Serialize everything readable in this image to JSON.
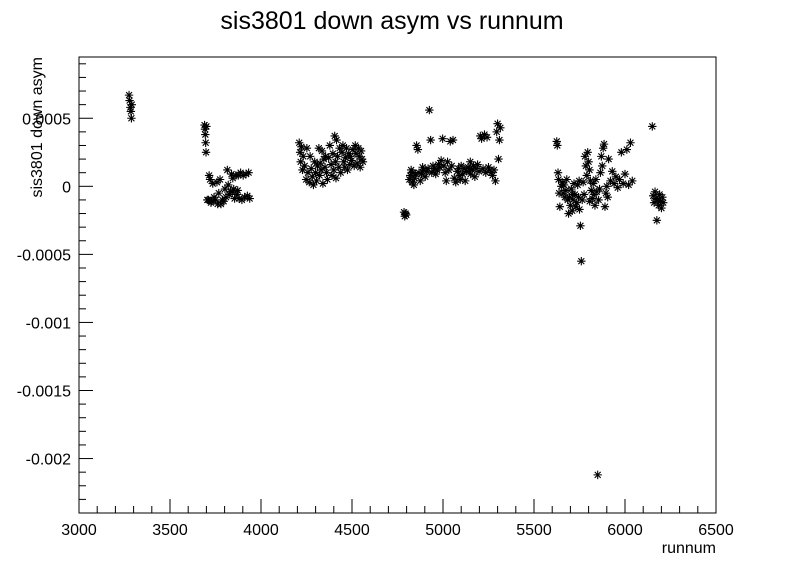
{
  "chart_data": {
    "type": "scatter",
    "title": "sis3801 down asym vs runnum",
    "xlabel": "runnum",
    "ylabel": "sis3801 down asym",
    "xlim": [
      3000,
      6500
    ],
    "ylim": [
      -0.0024,
      0.00095
    ],
    "x_ticks": [
      3000,
      3500,
      4000,
      4500,
      5000,
      5500,
      6000,
      6500
    ],
    "x_tick_labels": [
      "3000",
      "3500",
      "4000",
      "4500",
      "5000",
      "5500",
      "6000",
      "6500"
    ],
    "y_ticks": [
      -0.002,
      -0.0015,
      -0.001,
      -0.0005,
      0,
      0.0005
    ],
    "y_tick_labels": [
      "-0.002",
      "-0.0015",
      "-0.001",
      "-0.0005",
      "0",
      "0.0005"
    ],
    "marker": "asterisk",
    "grid": false,
    "legend": "none",
    "points": [
      [
        3275,
        0.00067
      ],
      [
        3278,
        0.00063
      ],
      [
        3282,
        0.00058
      ],
      [
        3285,
        0.00055
      ],
      [
        3288,
        0.0005
      ],
      [
        3290,
        0.0006
      ],
      [
        3690,
        0.00045
      ],
      [
        3692,
        0.00042
      ],
      [
        3694,
        0.00038
      ],
      [
        3696,
        0.00032
      ],
      [
        3698,
        0.00025
      ],
      [
        3700,
        0.00044
      ],
      [
        3705,
        -0.0001
      ],
      [
        3712,
        -0.0001
      ],
      [
        3715,
        8e-05
      ],
      [
        3720,
        5e-05
      ],
      [
        3725,
        -0.00012
      ],
      [
        3728,
        -0.00011
      ],
      [
        3735,
        2e-05
      ],
      [
        3742,
        -8e-05
      ],
      [
        3750,
        -0.0001
      ],
      [
        3758,
        3e-05
      ],
      [
        3762,
        -0.00013
      ],
      [
        3768,
        -5e-05
      ],
      [
        3775,
        5e-05
      ],
      [
        3780,
        -0.00013
      ],
      [
        3788,
        -0.0001
      ],
      [
        3795,
        -0.00011
      ],
      [
        3802,
        -2e-05
      ],
      [
        3808,
        -8e-05
      ],
      [
        3815,
        0.00012
      ],
      [
        3820,
        1e-05
      ],
      [
        3825,
        -6e-05
      ],
      [
        3832,
        -4e-05
      ],
      [
        3838,
        9e-05
      ],
      [
        3845,
        6e-05
      ],
      [
        3850,
        -2e-05
      ],
      [
        3855,
        -9e-05
      ],
      [
        3862,
        8e-05
      ],
      [
        3868,
        -6e-05
      ],
      [
        3875,
        8e-05
      ],
      [
        3880,
        -9e-05
      ],
      [
        3888,
        0.0001
      ],
      [
        3895,
        -0.0001
      ],
      [
        3902,
        8e-05
      ],
      [
        3910,
        -8e-05
      ],
      [
        3918,
        9e-05
      ],
      [
        3925,
        -7e-05
      ],
      [
        3932,
        0.0001
      ],
      [
        3938,
        -9e-05
      ],
      [
        3842,
        -4e-05
      ],
      [
        3872,
        -3e-05
      ],
      [
        4210,
        0.00032
      ],
      [
        4215,
        0.00025
      ],
      [
        4218,
        0.00018
      ],
      [
        4222,
        0.00029
      ],
      [
        4228,
        0.00012
      ],
      [
        4232,
        0.00022
      ],
      [
        4240,
        0.00015
      ],
      [
        4248,
        5e-05
      ],
      [
        4252,
        0.00028
      ],
      [
        4258,
        0.0001
      ],
      [
        4265,
        3e-05
      ],
      [
        4270,
        0.00022
      ],
      [
        4276,
        0.00013
      ],
      [
        4282,
        7e-05
      ],
      [
        4288,
        1e-05
      ],
      [
        4295,
        0.00018
      ],
      [
        4300,
        0.0001
      ],
      [
        4305,
        4e-05
      ],
      [
        4310,
        0.00015
      ],
      [
        4318,
        0.00028
      ],
      [
        4322,
        8e-05
      ],
      [
        4330,
        0.00012
      ],
      [
        4335,
        0.00026
      ],
      [
        4340,
        2e-05
      ],
      [
        4345,
        0.0002
      ],
      [
        4352,
        0.00014
      ],
      [
        4360,
        0.0001
      ],
      [
        4365,
        5e-05
      ],
      [
        4372,
        0.00021
      ],
      [
        4378,
        0.0003
      ],
      [
        4385,
        0.00016
      ],
      [
        4390,
        8e-05
      ],
      [
        4395,
        0.00024
      ],
      [
        4400,
        0.00012
      ],
      [
        4405,
        0.00037
      ],
      [
        4410,
        0.00018
      ],
      [
        4415,
        0.00034
      ],
      [
        4420,
        0.00022
      ],
      [
        4428,
        0.00014
      ],
      [
        4432,
        0.00028
      ],
      [
        4438,
        0.0001
      ],
      [
        4445,
        0.00025
      ],
      [
        4450,
        0.0003
      ],
      [
        4455,
        0.00018
      ],
      [
        4460,
        0.00014
      ],
      [
        4465,
        0.00021
      ],
      [
        4470,
        0.00028
      ],
      [
        4475,
        0.00012
      ],
      [
        4482,
        0.00024
      ],
      [
        4488,
        0.00016
      ],
      [
        4492,
        0.00022
      ],
      [
        4498,
        0.00019
      ],
      [
        4505,
        0.00027
      ],
      [
        4512,
        0.00015
      ],
      [
        4518,
        0.0003
      ],
      [
        4522,
        0.00024
      ],
      [
        4528,
        0.00017
      ],
      [
        4535,
        0.00028
      ],
      [
        4540,
        0.00022
      ],
      [
        4545,
        0.00014
      ],
      [
        4550,
        0.00026
      ],
      [
        4555,
        0.0002
      ],
      [
        4560,
        0.00018
      ],
      [
        4325,
        0.00017
      ],
      [
        4355,
        0.00022
      ],
      [
        4412,
        6e-05
      ],
      [
        4786,
        -0.00019
      ],
      [
        4790,
        -0.00022
      ],
      [
        4794,
        -0.0002
      ],
      [
        4798,
        -0.00021
      ],
      [
        4815,
        5e-05
      ],
      [
        4820,
        8e-05
      ],
      [
        4825,
        0.00012
      ],
      [
        4830,
        3e-05
      ],
      [
        4835,
        0.0001
      ],
      [
        4840,
        1e-05
      ],
      [
        4845,
        6e-05
      ],
      [
        4850,
        9e-05
      ],
      [
        4855,
        0.0003
      ],
      [
        4862,
        0.00027
      ],
      [
        4868,
        0.0001
      ],
      [
        4875,
        4e-05
      ],
      [
        4882,
        9e-05
      ],
      [
        4888,
        0.00014
      ],
      [
        4895,
        0.00012
      ],
      [
        4902,
        7e-05
      ],
      [
        4910,
        0.00011
      ],
      [
        4918,
        0.00013
      ],
      [
        4925,
        0.00056
      ],
      [
        4932,
        0.00034
      ],
      [
        4938,
        0.0001
      ],
      [
        4945,
        0.00015
      ],
      [
        4952,
        0.00013
      ],
      [
        4960,
        9e-05
      ],
      [
        4968,
        0.00012
      ],
      [
        4975,
        0.00016
      ],
      [
        4982,
        0.00014
      ],
      [
        4990,
        0.00019
      ],
      [
        4998,
        0.00035
      ],
      [
        5005,
        0.00015
      ],
      [
        5012,
        0.0001
      ],
      [
        5018,
        4e-05
      ],
      [
        5025,
        0.00018
      ],
      [
        5032,
        0.00012
      ],
      [
        5040,
        0.00033
      ],
      [
        5048,
        0.00015
      ],
      [
        5055,
        0.00034
      ],
      [
        5062,
        6e-05
      ],
      [
        5070,
        3e-05
      ],
      [
        5078,
        0.00011
      ],
      [
        5085,
        0.00013
      ],
      [
        5092,
        8e-05
      ],
      [
        5100,
        0.00015
      ],
      [
        5108,
        9e-05
      ],
      [
        5115,
        0.00013
      ],
      [
        5122,
        4e-05
      ],
      [
        5130,
        0.00011
      ],
      [
        5138,
        0.00014
      ],
      [
        5145,
        0.00013
      ],
      [
        5152,
        9e-05
      ],
      [
        5160,
        0.00012
      ],
      [
        5168,
        0.00015
      ],
      [
        5175,
        7e-05
      ],
      [
        5182,
        0.00013
      ],
      [
        5190,
        0.00016
      ],
      [
        5198,
        0.00011
      ],
      [
        5205,
        0.00037
      ],
      [
        5212,
        0.00035
      ],
      [
        5220,
        0.00013
      ],
      [
        5228,
        0.00038
      ],
      [
        5235,
        0.0001
      ],
      [
        5242,
        0.00036
      ],
      [
        5250,
        0.00014
      ],
      [
        5258,
        0.00012
      ],
      [
        5265,
        0.0001
      ],
      [
        5272,
        8e-05
      ],
      [
        5280,
        0.00012
      ],
      [
        5288,
        4e-05
      ],
      [
        5295,
        0.0004
      ],
      [
        5300,
        0.00046
      ],
      [
        5305,
        0.0002
      ],
      [
        5310,
        0.00034
      ],
      [
        5315,
        0.00043
      ],
      [
        5095,
        5e-05
      ],
      [
        5150,
        0.00018
      ],
      [
        5625,
        0.00033
      ],
      [
        5628,
        0.0003
      ],
      [
        5632,
        0.0001
      ],
      [
        5635,
        5e-05
      ],
      [
        5638,
        -5e-05
      ],
      [
        5642,
        -0.00015
      ],
      [
        5650,
        0.0
      ],
      [
        5655,
        3e-05
      ],
      [
        5660,
        -5e-05
      ],
      [
        5665,
        1e-05
      ],
      [
        5670,
        -8e-05
      ],
      [
        5675,
        -3e-05
      ],
      [
        5680,
        5e-05
      ],
      [
        5685,
        -0.0001
      ],
      [
        5690,
        -0.0002
      ],
      [
        5695,
        -8e-05
      ],
      [
        5700,
        -0.00014
      ],
      [
        5705,
        -2e-05
      ],
      [
        5710,
        -0.00018
      ],
      [
        5715,
        -0.0001
      ],
      [
        5720,
        2e-05
      ],
      [
        5725,
        -6e-05
      ],
      [
        5730,
        -0.00015
      ],
      [
        5735,
        -0.00012
      ],
      [
        5740,
        1e-05
      ],
      [
        5745,
        -8e-05
      ],
      [
        5750,
        -0.00017
      ],
      [
        5755,
        -0.00029
      ],
      [
        5760,
        -0.00055
      ],
      [
        5765,
        -0.0001
      ],
      [
        5770,
        3e-05
      ],
      [
        5775,
        -6e-05
      ],
      [
        5780,
        0.00022
      ],
      [
        5785,
        0.00015
      ],
      [
        5790,
        8e-05
      ],
      [
        5795,
        0.00025
      ],
      [
        5800,
        0.00018
      ],
      [
        5805,
        0.00012
      ],
      [
        5810,
        4e-05
      ],
      [
        5815,
        -3e-05
      ],
      [
        5820,
        -9e-05
      ],
      [
        5825,
        2e-05
      ],
      [
        5830,
        -6e-05
      ],
      [
        5835,
        -0.00014
      ],
      [
        5840,
        5e-05
      ],
      [
        5845,
        -4e-05
      ],
      [
        5850,
        -0.00212
      ],
      [
        5855,
        -0.0001
      ],
      [
        5860,
        -2e-05
      ],
      [
        5865,
        0.0001
      ],
      [
        5870,
        0.00022
      ],
      [
        5875,
        0.00015
      ],
      [
        5880,
        0.00028
      ],
      [
        5885,
        0.00031
      ],
      [
        5890,
        -0.00015
      ],
      [
        5895,
        -5e-05
      ],
      [
        5900,
        0.0
      ],
      [
        5905,
        -8e-05
      ],
      [
        5910,
        0.0002
      ],
      [
        5920,
        4e-05
      ],
      [
        5930,
        0.00011
      ],
      [
        5940,
        2e-05
      ],
      [
        5950,
        7e-05
      ],
      [
        5960,
        -1e-05
      ],
      [
        5970,
        5e-05
      ],
      [
        5980,
        0.00025
      ],
      [
        5990,
        2e-05
      ],
      [
        6000,
        9e-05
      ],
      [
        6010,
        0.00027
      ],
      [
        6020,
        1e-05
      ],
      [
        6030,
        0.00032
      ],
      [
        6040,
        4e-05
      ],
      [
        6150,
        0.00044
      ],
      [
        6155,
        -7e-05
      ],
      [
        6160,
        -0.00012
      ],
      [
        6165,
        -4e-05
      ],
      [
        6170,
        -9e-05
      ],
      [
        6175,
        -0.00025
      ],
      [
        6180,
        -0.0001
      ],
      [
        6185,
        -0.00014
      ],
      [
        6190,
        -6e-05
      ],
      [
        6195,
        -0.00011
      ],
      [
        6200,
        -0.00016
      ],
      [
        6205,
        -8e-05
      ],
      [
        6210,
        -0.00012
      ],
      [
        5712,
        -6e-05
      ],
      [
        5748,
        4e-05
      ],
      [
        5806,
        -0.00011
      ]
    ]
  }
}
